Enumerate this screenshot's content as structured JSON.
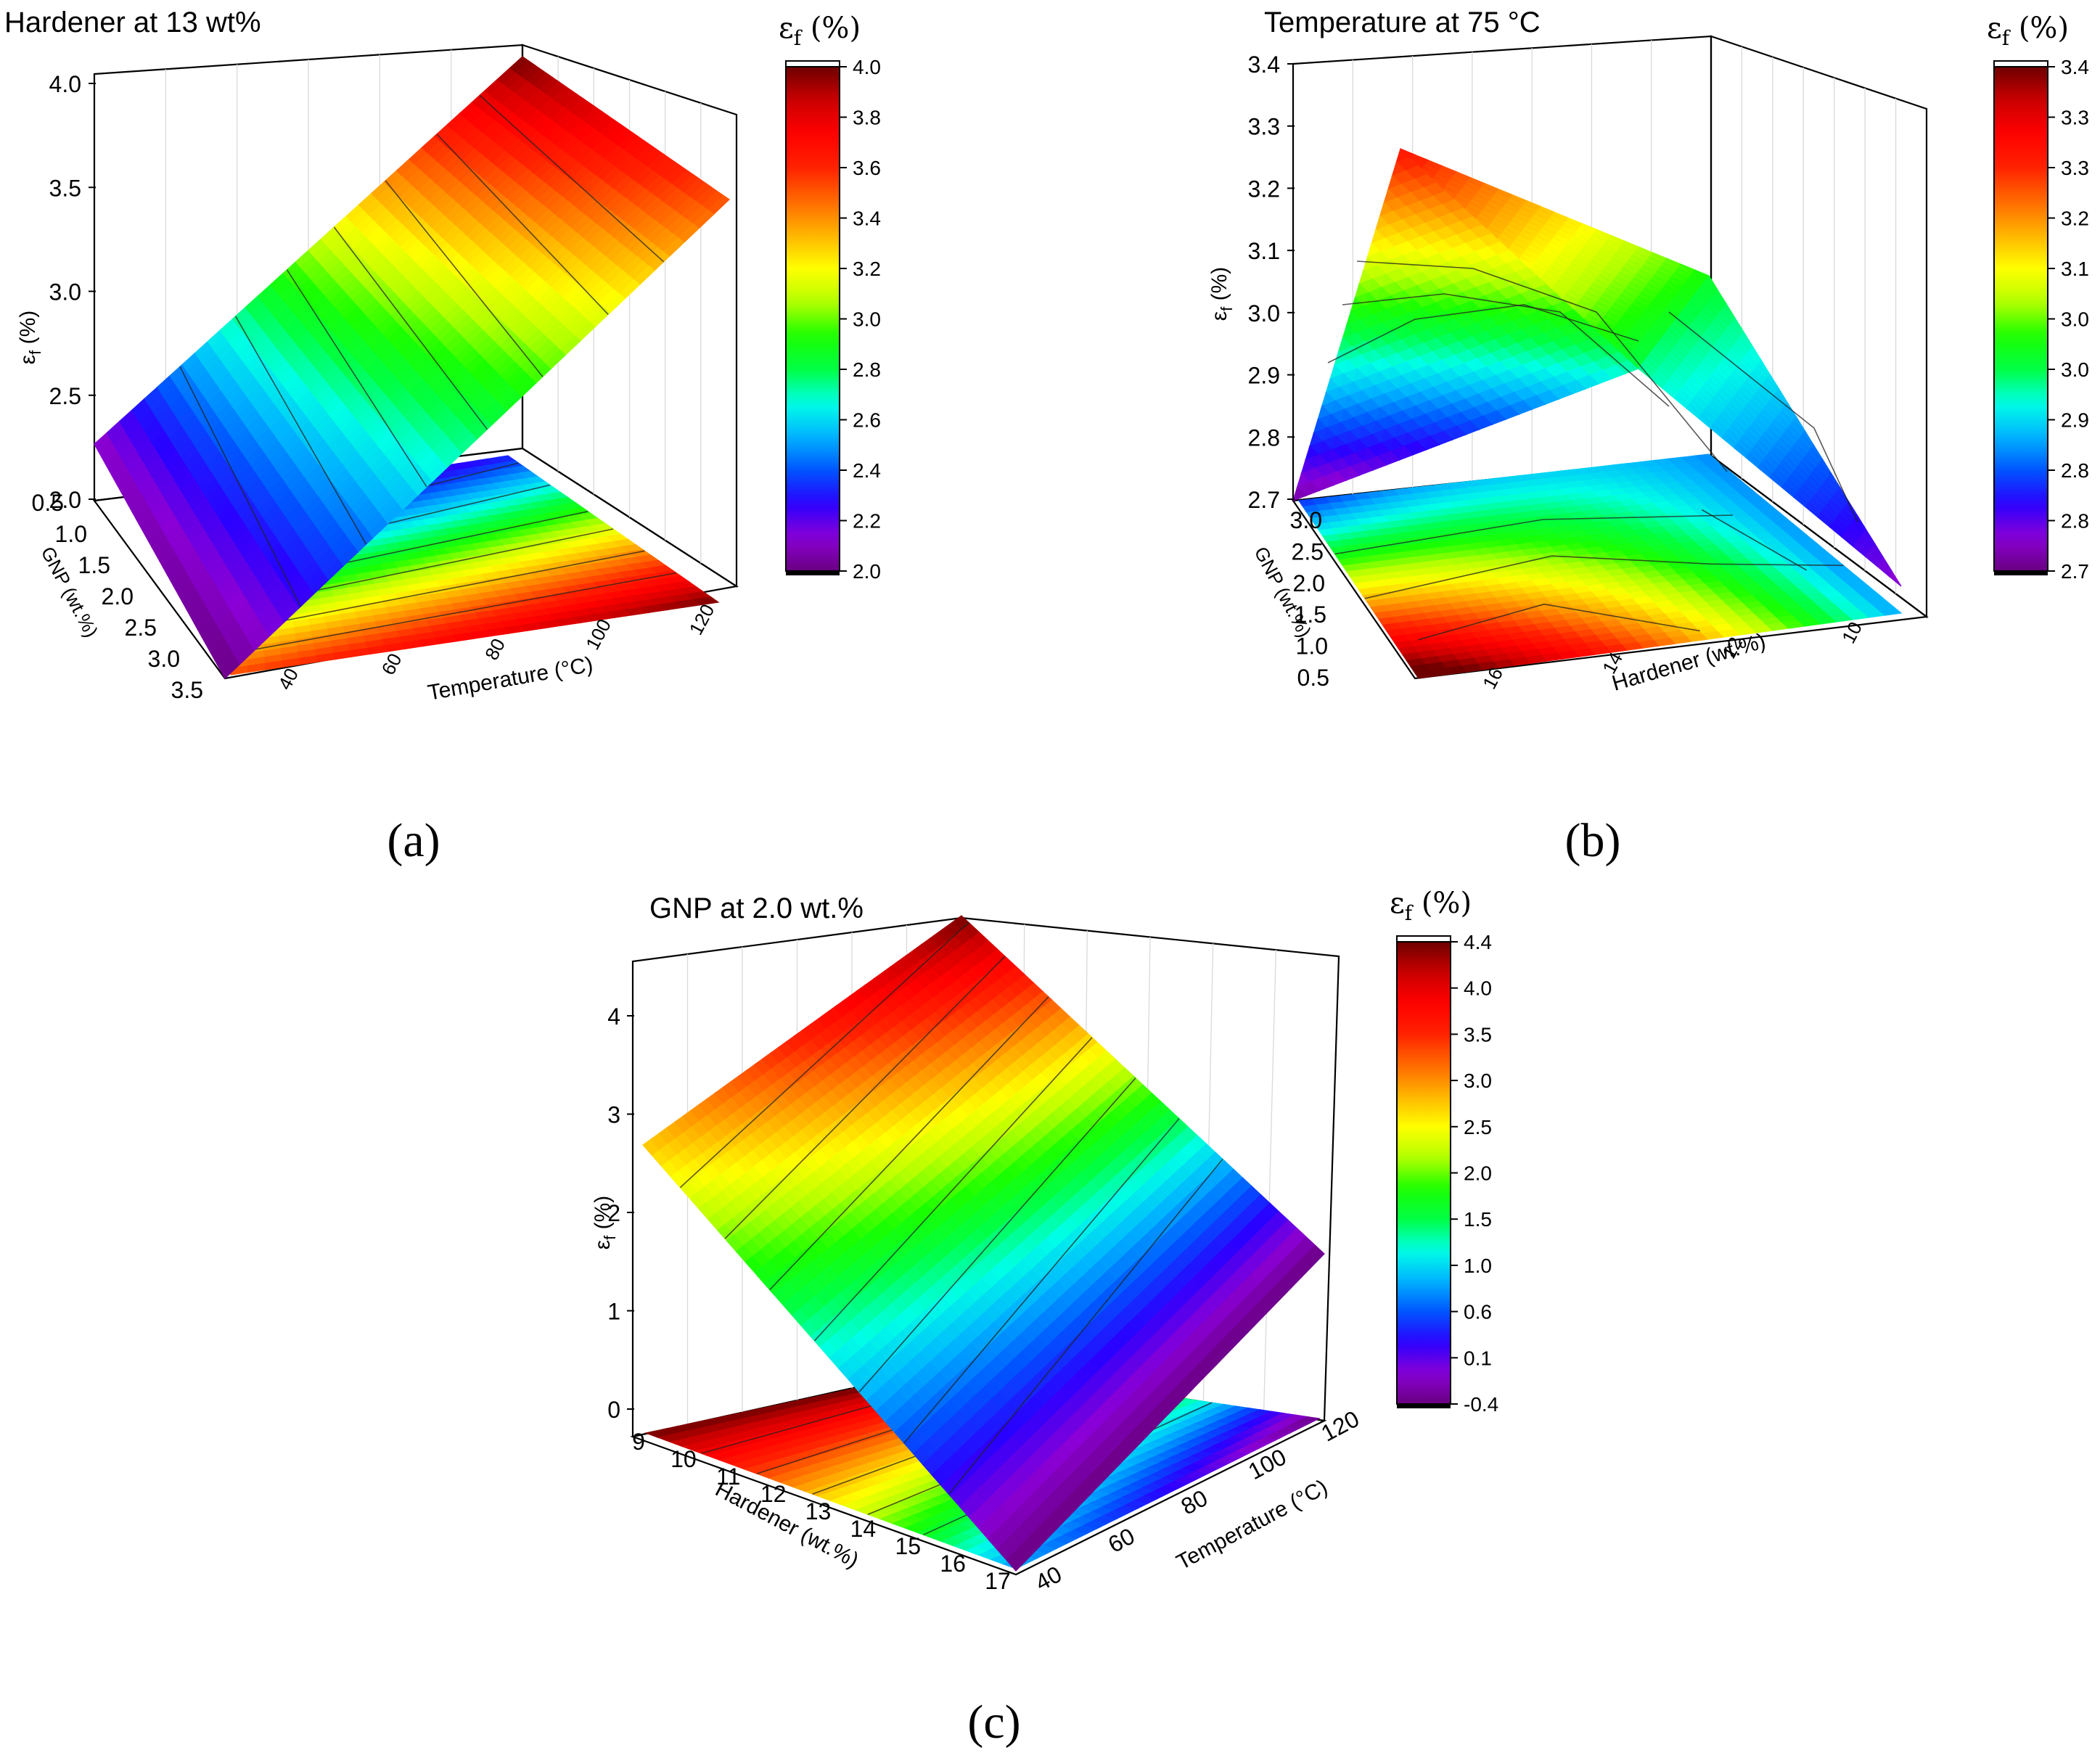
{
  "colormap": [
    "#6a0080",
    "#8a00d6",
    "#2a00ff",
    "#0055ff",
    "#00b4ff",
    "#00ffe6",
    "#00ff44",
    "#1aff00",
    "#b4ff00",
    "#ffff00",
    "#ffb400",
    "#ff6a00",
    "#ff2200",
    "#ff0000",
    "#cc0000",
    "#6e0000"
  ],
  "colorbar_title": "ε",
  "colorbar_title_sub": "f",
  "colorbar_title_unit": " (%)",
  "z_axis_label": "ε",
  "z_axis_label_sub": "f",
  "z_axis_label_unit": " (%)",
  "chart_data": [
    {
      "id": "a",
      "type": "surface3d",
      "title": "Hardener at 13 wt%",
      "panel_label": "(a)",
      "x_label": "Temperature (°C)",
      "y_label": "GNP (wt.%)",
      "x_ticks": [
        "40",
        "60",
        "80",
        "100",
        "120"
      ],
      "y_ticks": [
        "0.5",
        "1.0",
        "1.5",
        "2.0",
        "2.5",
        "3.0",
        "3.5"
      ],
      "z_ticks": [
        "2.0",
        "2.5",
        "3.0",
        "3.5",
        "4.0"
      ],
      "x_range": [
        30,
        120
      ],
      "y_range": [
        0.5,
        3.5
      ],
      "z_range": [
        2.0,
        4.1
      ],
      "surface_corners": {
        "x_min_y_min": 2.25,
        "x_max_y_min": 4.1,
        "x_min_y_max": 2.0,
        "x_max_y_max": 3.45
      },
      "colorbar_ticks": [
        "2.0",
        "2.2",
        "2.4",
        "2.6",
        "2.8",
        "3.0",
        "3.2",
        "3.4",
        "3.6",
        "3.8",
        "4.0"
      ],
      "colorbar_range": [
        2.0,
        4.0
      ]
    },
    {
      "id": "b",
      "type": "surface3d",
      "title": "Temperature at 75 °C",
      "panel_label": "(b)",
      "x_label": "Hardener (wt.%)",
      "y_label": "GNP (wt.%)",
      "x_ticks": [
        "16",
        "14",
        "12",
        "10"
      ],
      "y_ticks": [
        "0.5",
        "1.0",
        "1.5",
        "2.0",
        "2.5",
        "3.0"
      ],
      "z_ticks": [
        "2.7",
        "2.8",
        "2.9",
        "3.0",
        "3.1",
        "3.2",
        "3.3",
        "3.4"
      ],
      "x_range": [
        17,
        9
      ],
      "y_range": [
        0.5,
        3.0
      ],
      "z_range": [
        2.7,
        3.4
      ],
      "surface_corners": {
        "x_min_y_min": 3.27,
        "x_max_y_min": 2.73,
        "x_min_y_max": 2.7,
        "x_max_y_max": 3.04
      },
      "colorbar_ticks": [
        "2.7",
        "2.8",
        "2.8",
        "2.9",
        "3.0",
        "3.0",
        "3.1",
        "3.2",
        "3.3",
        "3.3",
        "3.4"
      ],
      "colorbar_range": [
        2.7,
        3.4
      ]
    },
    {
      "id": "c",
      "type": "surface3d",
      "title": "GNP at 2.0 wt.%",
      "panel_label": "(c)",
      "x_label": "Hardener (wt.%)",
      "y_label": "Temperature (°C)",
      "x_ticks": [
        "9",
        "10",
        "11",
        "12",
        "13",
        "14",
        "15",
        "16",
        "17"
      ],
      "y_ticks": [
        "40",
        "60",
        "80",
        "100",
        "120"
      ],
      "z_ticks": [
        "0",
        "1",
        "2",
        "3",
        "4"
      ],
      "x_range": [
        9,
        17
      ],
      "y_range": [
        30,
        120
      ],
      "z_range": [
        -0.4,
        4.4
      ],
      "surface_corners": {
        "x_min_y_min": 2.6,
        "x_max_y_min": -0.4,
        "x_min_y_max": 4.4,
        "x_max_y_max": 1.4
      },
      "colorbar_ticks": [
        "-0.4",
        "0.1",
        "0.6",
        "1.0",
        "1.5",
        "2.0",
        "2.5",
        "3.0",
        "3.5",
        "4.0",
        "4.4"
      ],
      "colorbar_range": [
        -0.4,
        4.4
      ]
    }
  ]
}
